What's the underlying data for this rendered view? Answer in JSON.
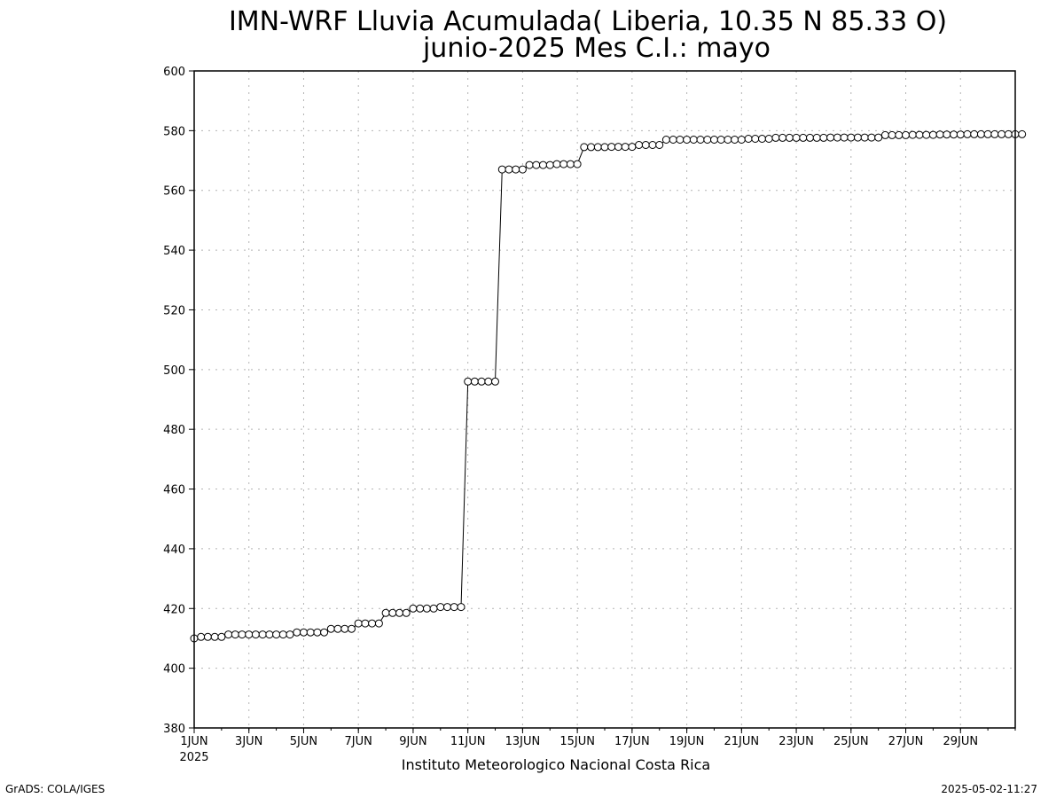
{
  "chart_data": {
    "type": "line",
    "title": "IMN-WRF  Lluvia Acumulada( Liberia, 10.35  N 85.33  O)",
    "subtitle": "junio-2025 Mes C.I.: mayo",
    "xlabel": "",
    "ylabel": "",
    "ylim": [
      380,
      600
    ],
    "yticks": [
      380,
      400,
      420,
      440,
      460,
      480,
      500,
      520,
      540,
      560,
      580,
      600
    ],
    "x_range": [
      "2025-06-01 00:00",
      "2025-07-01 00:00"
    ],
    "x_tick_labels": [
      "1JUN",
      "3JUN",
      "5JUN",
      "7JUN",
      "9JUN",
      "11JUN",
      "13JUN",
      "15JUN",
      "17JUN",
      "19JUN",
      "21JUN",
      "23JUN",
      "25JUN",
      "27JUN",
      "29JUN"
    ],
    "x_tick_dates": [
      "2025-06-01",
      "2025-06-03",
      "2025-06-05",
      "2025-06-07",
      "2025-06-09",
      "2025-06-11",
      "2025-06-13",
      "2025-06-15",
      "2025-06-17",
      "2025-06-19",
      "2025-06-21",
      "2025-06-23",
      "2025-06-25",
      "2025-06-27",
      "2025-06-29"
    ],
    "year_label": "2025",
    "grid": true,
    "legend": "none",
    "series": [
      {
        "marker": "open-circle",
        "color": "#000000",
        "x_start": "2025-06-01 00:00",
        "x_step_hours": 6,
        "values": [
          410,
          410.5,
          410.5,
          410.5,
          410.5,
          411.3,
          411.3,
          411.3,
          411.3,
          411.3,
          411.3,
          411.3,
          411.3,
          411.3,
          411.3,
          412,
          412,
          412,
          412,
          412,
          413.2,
          413.2,
          413.2,
          413.2,
          415,
          415,
          415,
          415,
          418.5,
          418.5,
          418.5,
          418.5,
          420,
          420,
          420,
          420,
          420.5,
          420.5,
          420.5,
          420.5,
          496,
          496,
          496,
          496,
          496,
          567,
          567,
          567,
          567,
          568.5,
          568.5,
          568.5,
          568.5,
          568.8,
          568.8,
          568.8,
          568.8,
          574.5,
          574.5,
          574.5,
          574.5,
          574.6,
          574.6,
          574.6,
          574.6,
          575.2,
          575.2,
          575.2,
          575.2,
          577,
          577,
          577,
          577,
          577,
          577,
          577,
          577,
          577,
          577,
          577,
          577,
          577.3,
          577.3,
          577.3,
          577.3,
          577.6,
          577.6,
          577.6,
          577.6,
          577.6,
          577.6,
          577.6,
          577.6,
          577.7,
          577.7,
          577.7,
          577.7,
          577.7,
          577.7,
          577.7,
          577.7,
          578.5,
          578.5,
          578.5,
          578.5,
          578.6,
          578.6,
          578.6,
          578.6,
          578.7,
          578.7,
          578.7,
          578.7,
          578.8,
          578.8,
          578.8,
          578.8,
          578.8,
          578.8,
          578.8,
          578.8,
          578.8
        ]
      }
    ]
  },
  "footer": {
    "institution": "Instituto Meteorologico Nacional Costa Rica",
    "software": "GrADS: COLA/IGES",
    "timestamp": "2025-05-02-11:27"
  }
}
